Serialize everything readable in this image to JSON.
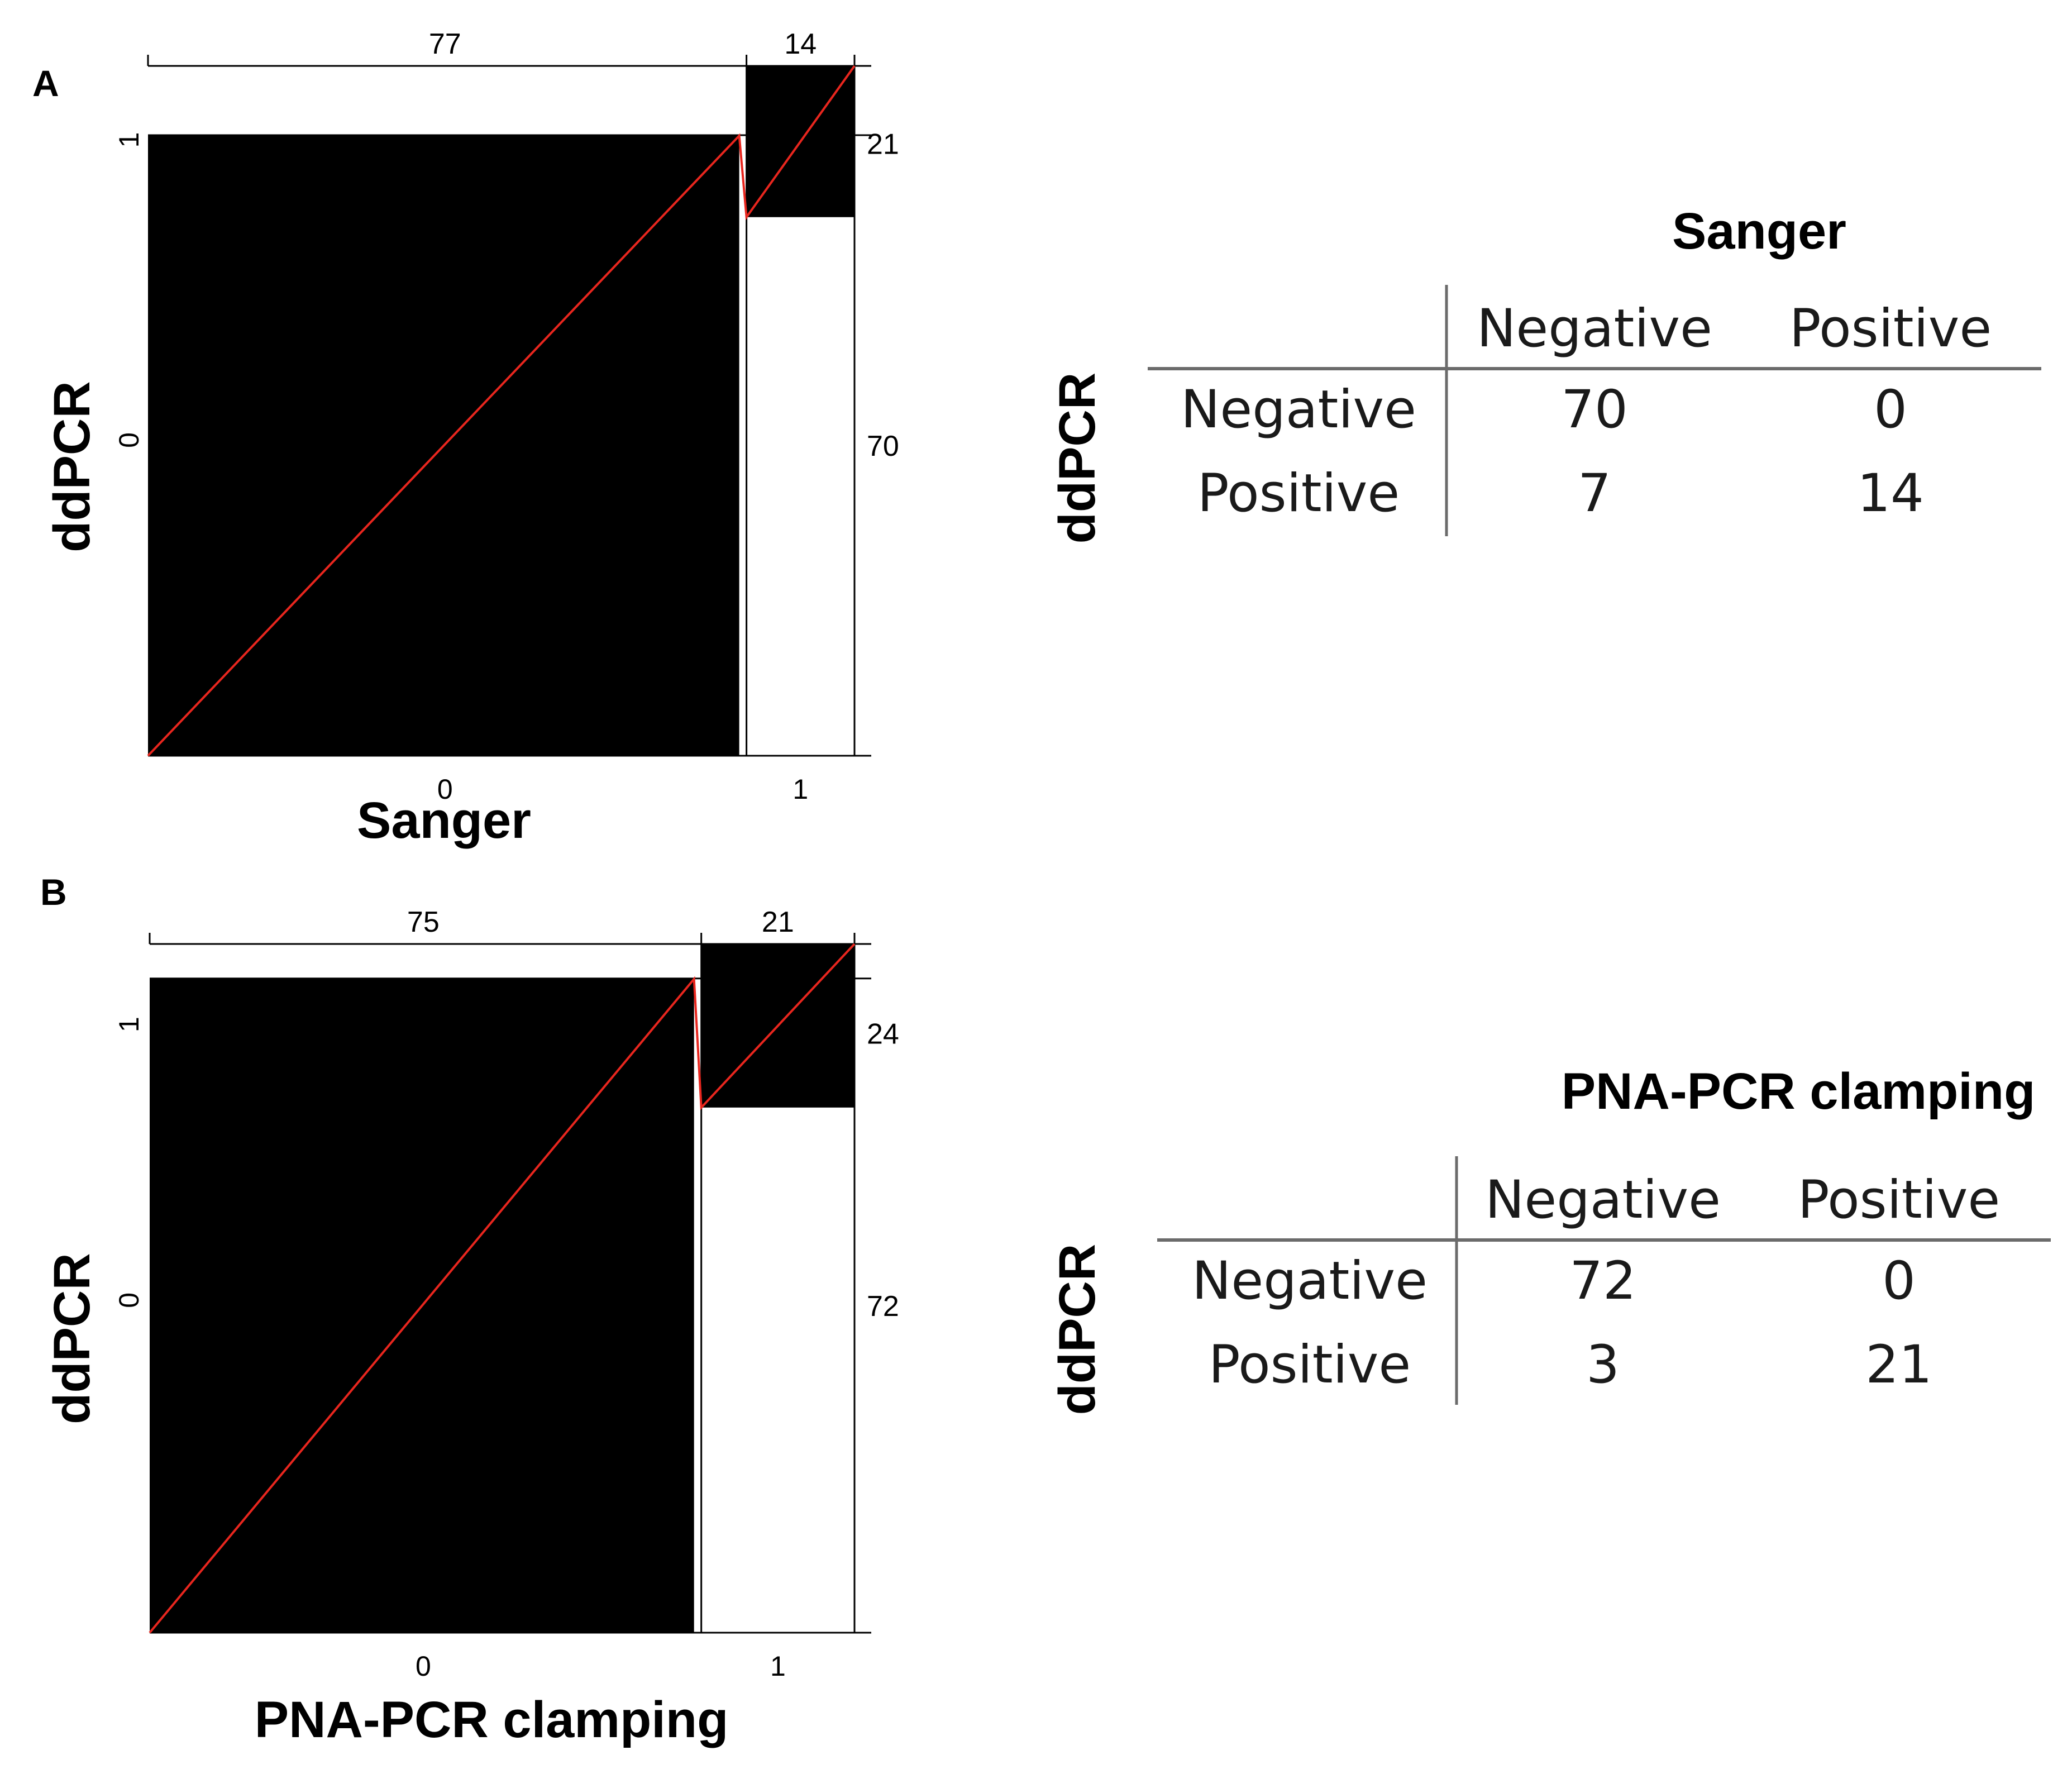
{
  "chart_data": [
    {
      "panel": "A",
      "type": "heatmap",
      "xlabel": "Sanger",
      "ylabel": "ddPCR",
      "x_ticks": [
        "0",
        "1"
      ],
      "y_ticks": [
        "0",
        "1"
      ],
      "col_totals": [
        77,
        14
      ],
      "row_totals": [
        70,
        21
      ],
      "cells": [
        [
          70,
          0
        ],
        [
          7,
          14
        ]
      ],
      "table": {
        "title": "Sanger",
        "side_label": "ddPCR",
        "columns": [
          "Negative",
          "Positive"
        ],
        "rows": [
          {
            "label": "Negative",
            "values": [
              "70",
              "0"
            ]
          },
          {
            "label": "Positive",
            "values": [
              "7",
              "14"
            ]
          }
        ]
      }
    },
    {
      "panel": "B",
      "type": "heatmap",
      "xlabel": "PNA-PCR clamping",
      "ylabel": "ddPCR",
      "x_ticks": [
        "0",
        "1"
      ],
      "y_ticks": [
        "0",
        "1"
      ],
      "col_totals": [
        75,
        21
      ],
      "row_totals": [
        72,
        24
      ],
      "cells": [
        [
          72,
          0
        ],
        [
          3,
          21
        ]
      ],
      "table": {
        "title": "PNA-PCR clamping",
        "side_label": "ddPCR",
        "columns": [
          "Negative",
          "Positive"
        ],
        "rows": [
          {
            "label": "Negative",
            "values": [
              "72",
              "0"
            ]
          },
          {
            "label": "Positive",
            "values": [
              "3",
              "21"
            ]
          }
        ]
      }
    }
  ],
  "colors": {
    "fill": "#000000",
    "diagonal": "#e8261e",
    "lines": "#000000",
    "table_rule": "#6b6b6b"
  }
}
